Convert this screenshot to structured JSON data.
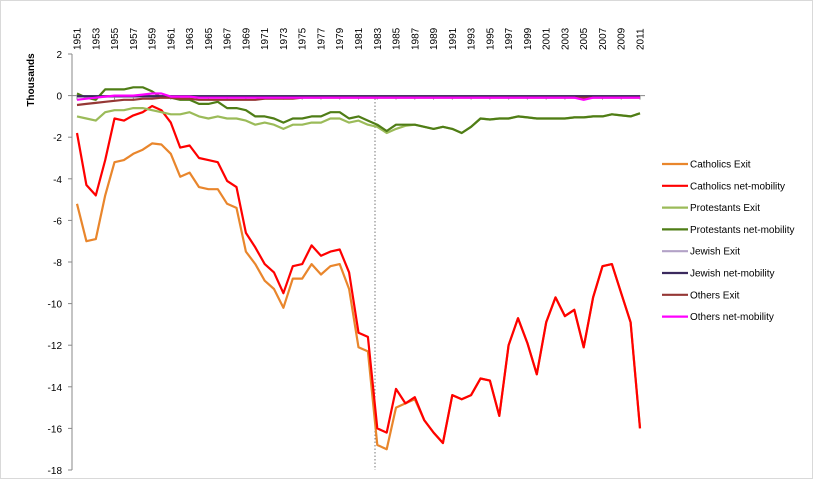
{
  "chart_data": {
    "type": "line",
    "y_label": "Thousands",
    "x": [
      1951,
      1952,
      1953,
      1954,
      1955,
      1956,
      1957,
      1958,
      1959,
      1960,
      1961,
      1962,
      1963,
      1964,
      1965,
      1966,
      1967,
      1968,
      1969,
      1970,
      1971,
      1972,
      1973,
      1974,
      1975,
      1976,
      1977,
      1978,
      1979,
      1980,
      1981,
      1982,
      1983,
      1984,
      1985,
      1986,
      1987,
      1988,
      1989,
      1990,
      1991,
      1992,
      1993,
      1994,
      1995,
      1996,
      1997,
      1998,
      1999,
      2000,
      2001,
      2002,
      2003,
      2004,
      2005,
      2006,
      2007,
      2008,
      2009,
      2010,
      2011
    ],
    "xlim": [
      1951,
      2011
    ],
    "xticks": [
      1951,
      1953,
      1955,
      1957,
      1959,
      1961,
      1963,
      1965,
      1967,
      1969,
      1971,
      1973,
      1975,
      1977,
      1979,
      1981,
      1983,
      1985,
      1987,
      1989,
      1991,
      1993,
      1995,
      1997,
      1999,
      2001,
      2003,
      2005,
      2007,
      2009,
      2011
    ],
    "ylim": [
      -18,
      2
    ],
    "yticks": [
      2,
      0,
      -2,
      -4,
      -6,
      -8,
      -10,
      -12,
      -14,
      -16,
      -18
    ],
    "grid": false,
    "legend": "right",
    "series": [
      {
        "name": "Catholics Exit",
        "color": "#e9862c",
        "values": [
          -5.2,
          -7.0,
          -6.9,
          -4.8,
          -3.2,
          -3.1,
          -2.8,
          -2.6,
          -2.3,
          -2.35,
          -2.8,
          -3.9,
          -3.7,
          -4.4,
          -4.5,
          -4.5,
          -5.2,
          -5.4,
          -7.5,
          -8.1,
          -8.9,
          -9.3,
          -10.2,
          -8.8,
          -8.8,
          -8.1,
          -8.6,
          -8.2,
          -8.1,
          -9.3,
          -12.1,
          -12.3,
          -16.8,
          -17.0,
          -15.0,
          -14.8,
          -14.6,
          -15.6,
          -16.2,
          -16.7,
          -14.4,
          -14.6,
          -14.4,
          -13.6,
          -13.7,
          -15.4,
          -12.0,
          -10.7,
          -11.9,
          -13.4,
          -10.9,
          -9.7,
          -10.6,
          -10.3,
          -12.1,
          -9.7,
          -8.2,
          -8.1,
          -9.5,
          -10.9,
          -16.0
        ]
      },
      {
        "name": "Catholics net-mobility",
        "color": "#ff0000",
        "values": [
          -1.8,
          -4.3,
          -4.8,
          -3.1,
          -1.1,
          -1.2,
          -0.95,
          -0.8,
          -0.5,
          -0.7,
          -1.3,
          -2.5,
          -2.4,
          -3.0,
          -3.1,
          -3.2,
          -4.1,
          -4.4,
          -6.6,
          -7.3,
          -8.1,
          -8.5,
          -9.5,
          -8.2,
          -8.1,
          -7.2,
          -7.7,
          -7.5,
          -7.4,
          -8.5,
          -11.4,
          -11.6,
          -16.0,
          -16.2,
          -14.1,
          -14.8,
          -14.5,
          -15.6,
          -16.2,
          -16.7,
          -14.4,
          -14.6,
          -14.4,
          -13.6,
          -13.7,
          -15.4,
          -12.0,
          -10.7,
          -11.9,
          -13.4,
          -10.9,
          -9.7,
          -10.6,
          -10.3,
          -12.1,
          -9.7,
          -8.2,
          -8.1,
          -9.5,
          -10.9,
          -16.0
        ]
      },
      {
        "name": "Protestants Exit",
        "color": "#9bbb59",
        "values": [
          -1.0,
          -1.1,
          -1.2,
          -0.8,
          -0.7,
          -0.7,
          -0.6,
          -0.6,
          -0.7,
          -0.8,
          -0.9,
          -0.9,
          -0.8,
          -1.0,
          -1.1,
          -1.0,
          -1.1,
          -1.1,
          -1.2,
          -1.4,
          -1.3,
          -1.4,
          -1.6,
          -1.4,
          -1.4,
          -1.3,
          -1.3,
          -1.1,
          -1.1,
          -1.3,
          -1.2,
          -1.4,
          -1.5,
          -1.8,
          -1.6,
          -1.45,
          -1.4,
          -1.5,
          -1.6,
          -1.5,
          -1.6,
          -1.8,
          -1.5,
          -1.1,
          -1.15,
          -1.1,
          -1.1,
          -1.0,
          -1.05,
          -1.1,
          -1.1,
          -1.1,
          -1.1,
          -1.05,
          -1.05,
          -1.0,
          -1.0,
          -0.9,
          -0.95,
          -1.0,
          -0.85
        ]
      },
      {
        "name": "Protestants net-mobility",
        "color": "#4f7d16",
        "values": [
          0.1,
          -0.1,
          -0.2,
          0.3,
          0.3,
          0.3,
          0.4,
          0.4,
          0.2,
          -0.1,
          -0.1,
          -0.2,
          -0.2,
          -0.4,
          -0.4,
          -0.3,
          -0.6,
          -0.6,
          -0.7,
          -1.0,
          -1.0,
          -1.1,
          -1.3,
          -1.1,
          -1.1,
          -1.0,
          -1.0,
          -0.8,
          -0.8,
          -1.1,
          -1.0,
          -1.2,
          -1.4,
          -1.7,
          -1.4,
          -1.4,
          -1.4,
          -1.5,
          -1.6,
          -1.5,
          -1.6,
          -1.8,
          -1.5,
          -1.1,
          -1.15,
          -1.1,
          -1.1,
          -1.0,
          -1.05,
          -1.1,
          -1.1,
          -1.1,
          -1.1,
          -1.05,
          -1.05,
          -1.0,
          -1.0,
          -0.9,
          -0.95,
          -1.0,
          -0.85
        ]
      },
      {
        "name": "Jewish Exit",
        "color": "#b3a2c7",
        "values": [
          -0.05,
          -0.05,
          -0.05,
          -0.05,
          -0.05,
          -0.05,
          -0.05,
          -0.05,
          -0.05,
          -0.05,
          -0.05,
          -0.05,
          -0.05,
          -0.05,
          -0.05,
          -0.05,
          -0.05,
          -0.05,
          -0.05,
          -0.05,
          -0.05,
          -0.05,
          -0.05,
          -0.05,
          -0.05,
          -0.05,
          -0.05,
          -0.05,
          -0.05,
          -0.05,
          -0.05,
          -0.05,
          -0.05,
          -0.05,
          -0.05,
          -0.05,
          -0.05,
          -0.05,
          -0.05,
          -0.05,
          -0.05,
          -0.05,
          -0.05,
          -0.05,
          -0.05,
          -0.05,
          -0.05,
          -0.05,
          -0.05,
          -0.05,
          -0.05,
          -0.05,
          -0.05,
          -0.05,
          -0.05,
          -0.05,
          -0.05,
          -0.05,
          -0.05,
          -0.05,
          -0.05
        ]
      },
      {
        "name": "Jewish net-mobility",
        "color": "#3b2a5e",
        "values": [
          -0.03,
          -0.03,
          -0.03,
          -0.03,
          -0.03,
          -0.03,
          -0.03,
          -0.03,
          -0.03,
          -0.03,
          -0.03,
          -0.03,
          -0.03,
          -0.03,
          -0.03,
          -0.03,
          -0.03,
          -0.03,
          -0.03,
          -0.03,
          -0.03,
          -0.03,
          -0.03,
          -0.03,
          -0.03,
          -0.03,
          -0.03,
          -0.03,
          -0.03,
          -0.03,
          -0.03,
          -0.03,
          -0.03,
          -0.03,
          -0.03,
          -0.03,
          -0.03,
          -0.03,
          -0.03,
          -0.03,
          -0.03,
          -0.03,
          -0.03,
          -0.03,
          -0.03,
          -0.03,
          -0.03,
          -0.03,
          -0.03,
          -0.03,
          -0.03,
          -0.03,
          -0.03,
          -0.03,
          -0.03,
          -0.03,
          -0.03,
          -0.03,
          -0.03,
          -0.03,
          -0.03
        ]
      },
      {
        "name": "Others Exit",
        "color": "#953735",
        "values": [
          -0.45,
          -0.4,
          -0.35,
          -0.3,
          -0.25,
          -0.2,
          -0.2,
          -0.15,
          -0.15,
          -0.1,
          -0.1,
          -0.15,
          -0.15,
          -0.2,
          -0.2,
          -0.2,
          -0.2,
          -0.2,
          -0.2,
          -0.2,
          -0.15,
          -0.15,
          -0.15,
          -0.15,
          -0.1,
          -0.1,
          -0.1,
          -0.1,
          -0.1,
          -0.1,
          -0.1,
          -0.1,
          -0.1,
          -0.1,
          -0.1,
          -0.1,
          -0.1,
          -0.1,
          -0.1,
          -0.1,
          -0.1,
          -0.1,
          -0.1,
          -0.1,
          -0.1,
          -0.1,
          -0.1,
          -0.1,
          -0.1,
          -0.1,
          -0.1,
          -0.1,
          -0.1,
          -0.1,
          -0.1,
          -0.1,
          -0.1,
          -0.1,
          -0.1,
          -0.1,
          -0.1
        ]
      },
      {
        "name": "Others net-mobility",
        "color": "#ff00ff",
        "values": [
          -0.2,
          -0.15,
          -0.1,
          -0.05,
          0,
          0,
          0,
          0.05,
          0.1,
          0.1,
          -0.05,
          -0.05,
          -0.05,
          -0.1,
          -0.1,
          -0.1,
          -0.1,
          -0.1,
          -0.1,
          -0.1,
          -0.1,
          -0.1,
          -0.1,
          -0.1,
          -0.1,
          -0.1,
          -0.1,
          -0.1,
          -0.1,
          -0.1,
          -0.1,
          -0.1,
          -0.1,
          -0.1,
          -0.1,
          -0.1,
          -0.1,
          -0.1,
          -0.1,
          -0.1,
          -0.1,
          -0.1,
          -0.1,
          -0.1,
          -0.1,
          -0.1,
          -0.1,
          -0.1,
          -0.1,
          -0.1,
          -0.1,
          -0.1,
          -0.1,
          -0.1,
          -0.2,
          -0.1,
          -0.1,
          -0.1,
          -0.1,
          -0.1,
          -0.1
        ]
      }
    ]
  }
}
